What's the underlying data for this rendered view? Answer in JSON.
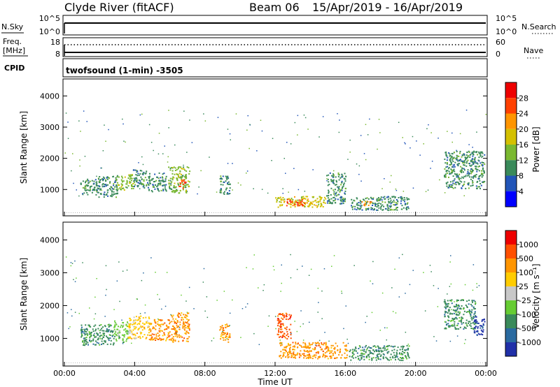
{
  "header": {
    "station": "Clyde River (fitACF)",
    "beam": "Beam 06",
    "dates": "15/Apr/2019 - 16/Apr/2019"
  },
  "top_panels": {
    "nsky_label": "N.Sky",
    "nsky_ticks": [
      "10^5",
      "10^0"
    ],
    "nsearch_label": "N.Search",
    "nsearch_ticks": [
      "10^5",
      "10^0"
    ],
    "freq_label_1": "Freq.",
    "freq_label_2": "[MHz]",
    "freq_ticks": [
      "18",
      "8"
    ],
    "nave_label": "Nave",
    "nave_ticks": [
      "60",
      "0"
    ],
    "cpid_label": "CPID",
    "cpid_text": "twofsound (1-min) -3505"
  },
  "chart_data": [
    {
      "type": "heatmap",
      "name": "power",
      "ylabel": "Slant Range [km]",
      "ylim": [
        200,
        4500
      ],
      "yticks": [
        "1000",
        "2000",
        "3000",
        "4000"
      ],
      "xlim": [
        0,
        24
      ],
      "colorbar_label": "Power [dB]",
      "colorbar_ticks": [
        "4",
        "8",
        "12",
        "16",
        "20",
        "24",
        "28"
      ],
      "colors": [
        "#0000ff",
        "#2255b8",
        "#3a8a5a",
        "#7ab830",
        "#d4c000",
        "#ff9500",
        "#ff4000",
        "#ee0000"
      ],
      "regions": [
        {
          "t": [
            0.9,
            2.0
          ],
          "r": [
            850,
            1350
          ],
          "c": 2
        },
        {
          "t": [
            1.9,
            3.0
          ],
          "r": [
            750,
            1450
          ],
          "c": 2
        },
        {
          "t": [
            2.9,
            3.9
          ],
          "r": [
            1000,
            1500
          ],
          "c": 3
        },
        {
          "t": [
            3.9,
            4.7
          ],
          "r": [
            1050,
            1650
          ],
          "c": 2
        },
        {
          "t": [
            4.7,
            5.8
          ],
          "r": [
            950,
            1550
          ],
          "c": 2
        },
        {
          "t": [
            5.9,
            7.1
          ],
          "r": [
            900,
            1750
          ],
          "c": 3
        },
        {
          "t": [
            6.5,
            6.9
          ],
          "r": [
            1050,
            1350
          ],
          "c": 6
        },
        {
          "t": [
            8.8,
            9.4
          ],
          "r": [
            850,
            1450
          ],
          "c": 2
        },
        {
          "t": [
            12.0,
            14.9
          ],
          "r": [
            450,
            800
          ],
          "c": 4
        },
        {
          "t": [
            12.6,
            13.8
          ],
          "r": [
            500,
            700
          ],
          "c": 6
        },
        {
          "t": [
            14.9,
            16.0
          ],
          "r": [
            550,
            1550
          ],
          "c": 2
        },
        {
          "t": [
            16.3,
            19.6
          ],
          "r": [
            350,
            800
          ],
          "c": 2
        },
        {
          "t": [
            16.9,
            17.5
          ],
          "r": [
            500,
            650
          ],
          "c": 5
        },
        {
          "t": [
            21.6,
            23.9
          ],
          "r": [
            1050,
            2250
          ],
          "c": 2
        }
      ]
    },
    {
      "type": "heatmap",
      "name": "velocity",
      "ylabel": "Slant Range [km]",
      "ylim": [
        200,
        4500
      ],
      "yticks": [
        "1000",
        "2000",
        "3000",
        "4000"
      ],
      "xlim": [
        0,
        24
      ],
      "xticks": [
        "00:00",
        "04:00",
        "08:00",
        "12:00",
        "16:00",
        "20:00",
        "00:00"
      ],
      "xlabel": "Time UT",
      "colorbar_label": "Velocity [m s⁻¹]",
      "colorbar_ticks": [
        "1000",
        "500",
        "100",
        "25",
        "-25",
        "-100",
        "-500",
        "-1000"
      ],
      "colors": [
        "#2030a8",
        "#2a6aa0",
        "#3a8a5a",
        "#66cc33",
        "#c8c8c8",
        "#ffcc00",
        "#ff9500",
        "#ff5000",
        "#ee0000"
      ],
      "regions": [
        {
          "t": [
            0.9,
            2.8
          ],
          "r": [
            800,
            1450
          ],
          "c": 2
        },
        {
          "t": [
            2.8,
            3.6
          ],
          "r": [
            900,
            1550
          ],
          "c": 3
        },
        {
          "t": [
            3.6,
            4.8
          ],
          "r": [
            1000,
            1700
          ],
          "c": 5
        },
        {
          "t": [
            4.8,
            6.0
          ],
          "r": [
            950,
            1600
          ],
          "c": 6
        },
        {
          "t": [
            6.0,
            7.1
          ],
          "r": [
            900,
            1800
          ],
          "c": 6
        },
        {
          "t": [
            8.8,
            9.4
          ],
          "r": [
            900,
            1450
          ],
          "c": 6
        },
        {
          "t": [
            12.1,
            12.9
          ],
          "r": [
            1000,
            1800
          ],
          "c": 7
        },
        {
          "t": [
            12.2,
            16.1
          ],
          "r": [
            400,
            900
          ],
          "c": 6
        },
        {
          "t": [
            16.2,
            19.6
          ],
          "r": [
            350,
            800
          ],
          "c": 2
        },
        {
          "t": [
            21.6,
            23.4
          ],
          "r": [
            1300,
            2200
          ],
          "c": 2
        },
        {
          "t": [
            23.3,
            23.9
          ],
          "r": [
            1100,
            1700
          ],
          "c": 0
        }
      ]
    }
  ]
}
